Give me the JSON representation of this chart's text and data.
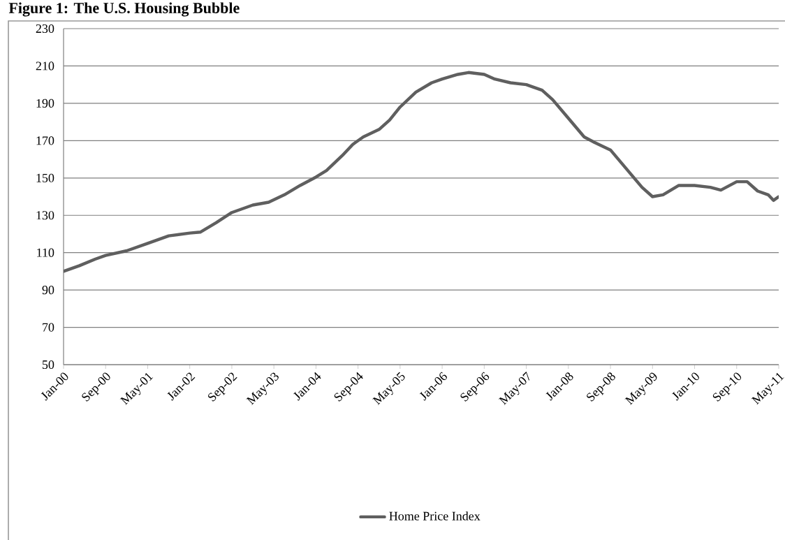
{
  "chart_data": {
    "type": "line",
    "title": "Figure 1: The U.S. Housing Bubble",
    "x": [
      "2000-01",
      "2000-04",
      "2000-07",
      "2000-09",
      "2001-01",
      "2001-05",
      "2001-09",
      "2002-01",
      "2002-03",
      "2002-06",
      "2002-09",
      "2003-01",
      "2003-04",
      "2003-07",
      "2003-10",
      "2004-01",
      "2004-03",
      "2004-06",
      "2004-08",
      "2004-10",
      "2005-01",
      "2005-03",
      "2005-05",
      "2005-08",
      "2005-11",
      "2006-01",
      "2006-04",
      "2006-06",
      "2006-09",
      "2006-11",
      "2007-02",
      "2007-05",
      "2007-08",
      "2007-10",
      "2008-01",
      "2008-04",
      "2008-06",
      "2008-09",
      "2008-12",
      "2009-03",
      "2009-05",
      "2009-07",
      "2009-10",
      "2010-01",
      "2010-04",
      "2010-06",
      "2010-09",
      "2010-11",
      "2011-01",
      "2011-03",
      "2011-04",
      "2011-05"
    ],
    "series": [
      {
        "name": "Home Price Index",
        "color": "#5f5f5f",
        "values": [
          100,
          103,
          106.5,
          108.5,
          111,
          115,
          119,
          120.5,
          121,
          126,
          131.5,
          135.5,
          137,
          141,
          146,
          150.5,
          154,
          162,
          168,
          172,
          176,
          181,
          188,
          196,
          201,
          203,
          205.5,
          206.5,
          205.5,
          203,
          201,
          200,
          197,
          192,
          182,
          172,
          169,
          165,
          155,
          145,
          140,
          141,
          146,
          146,
          145,
          143.5,
          148,
          148,
          143,
          141,
          138,
          140
        ]
      }
    ],
    "xlim": [
      "2000-01",
      "2011-05"
    ],
    "xticks": [
      {
        "value": "2000-01",
        "label": "Jan-00"
      },
      {
        "value": "2000-09",
        "label": "Sep-00"
      },
      {
        "value": "2001-05",
        "label": "May-01"
      },
      {
        "value": "2002-01",
        "label": "Jan-02"
      },
      {
        "value": "2002-09",
        "label": "Sep-02"
      },
      {
        "value": "2003-05",
        "label": "May-03"
      },
      {
        "value": "2004-01",
        "label": "Jan-04"
      },
      {
        "value": "2004-09",
        "label": "Sep-04"
      },
      {
        "value": "2005-05",
        "label": "May-05"
      },
      {
        "value": "2006-01",
        "label": "Jan-06"
      },
      {
        "value": "2006-09",
        "label": "Sep-06"
      },
      {
        "value": "2007-05",
        "label": "May-07"
      },
      {
        "value": "2008-01",
        "label": "Jan-08"
      },
      {
        "value": "2008-09",
        "label": "Sep-08"
      },
      {
        "value": "2009-05",
        "label": "May-09"
      },
      {
        "value": "2010-01",
        "label": "Jan-10"
      },
      {
        "value": "2010-09",
        "label": "Sep-10"
      },
      {
        "value": "2011-05",
        "label": "May-11"
      }
    ],
    "ylim": [
      50,
      230
    ],
    "yticks": [
      50,
      70,
      90,
      110,
      130,
      150,
      170,
      190,
      210,
      230
    ],
    "grid": "y",
    "legend": "bottom",
    "marker": "none",
    "line_style": "solid"
  }
}
